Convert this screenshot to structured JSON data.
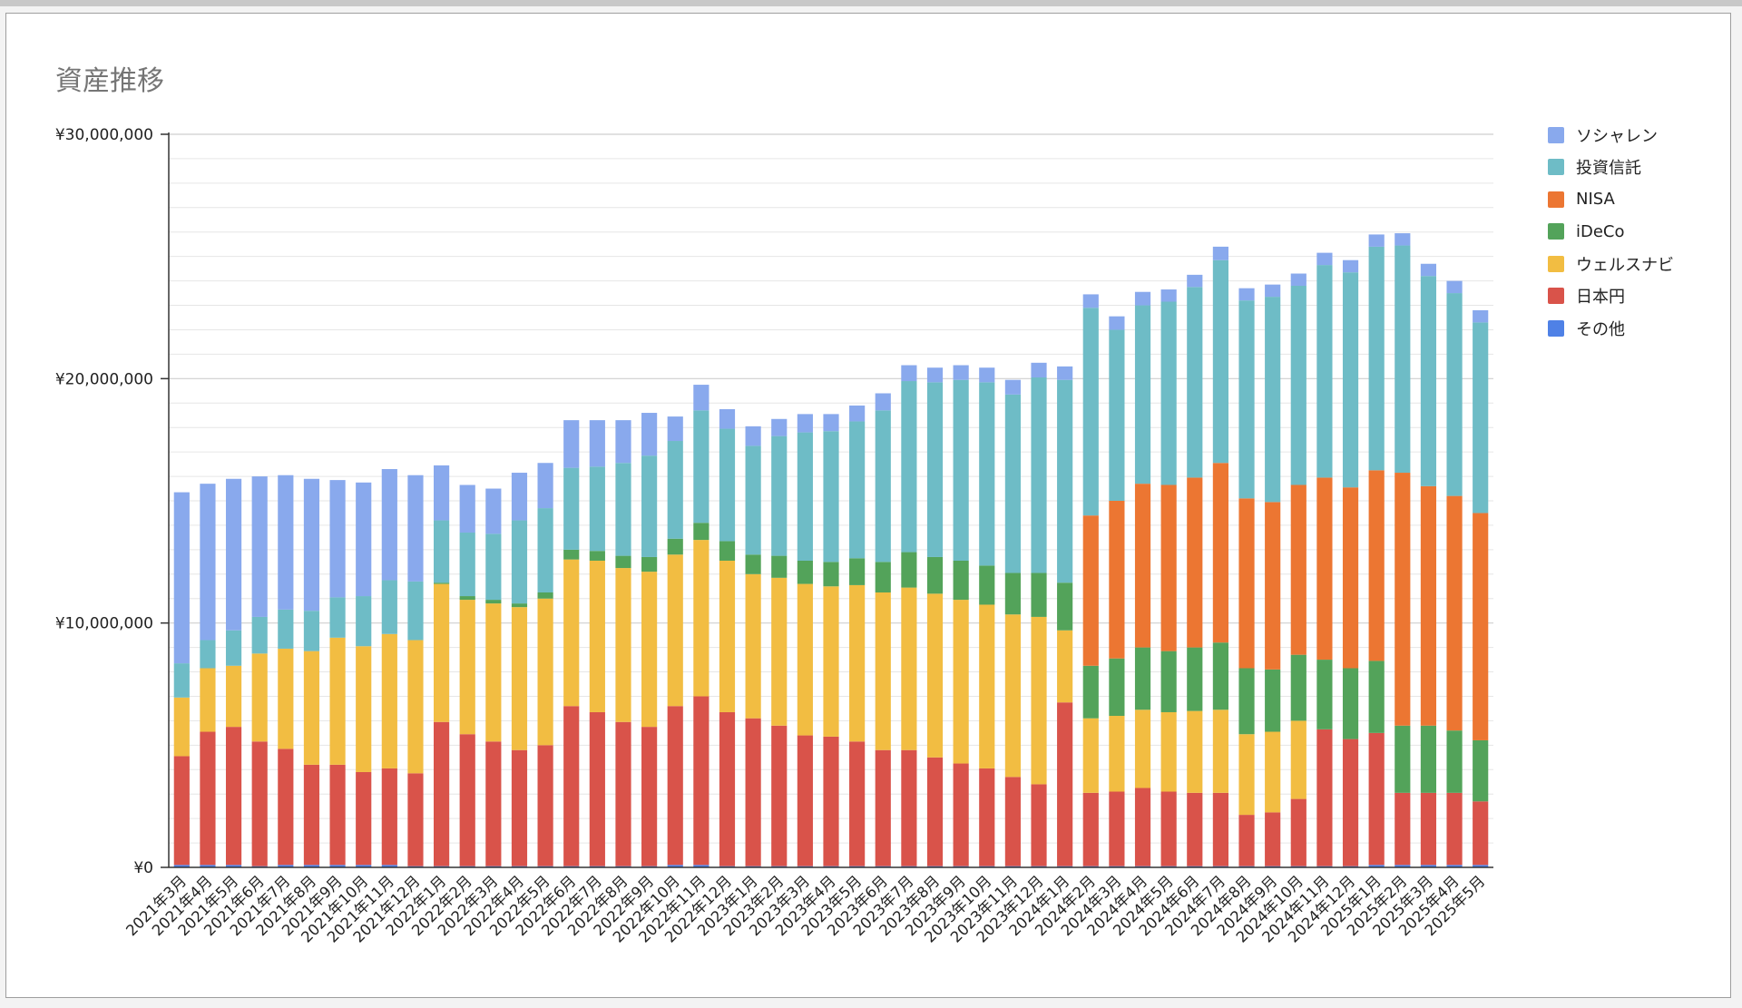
{
  "chart_data": {
    "type": "bar",
    "stacked": true,
    "title": "資産推移",
    "xlabel": "",
    "ylabel": "",
    "ylim": [
      0,
      30000000
    ],
    "y_ticks": [
      {
        "value": 0,
        "label": "¥0"
      },
      {
        "value": 10000000,
        "label": "¥10,000,000"
      },
      {
        "value": 20000000,
        "label": "¥20,000,000"
      },
      {
        "value": 30000000,
        "label": "¥30,000,000"
      }
    ],
    "gridlines": true,
    "legend_position": "right",
    "categories": [
      "2021年3月",
      "2021年4月",
      "2021年5月",
      "2021年6月",
      "2021年7月",
      "2021年8月",
      "2021年9月",
      "2021年10月",
      "2021年11月",
      "2021年12月",
      "2022年1月",
      "2022年2月",
      "2022年3月",
      "2022年4月",
      "2022年5月",
      "2022年6月",
      "2022年7月",
      "2022年8月",
      "2022年9月",
      "2022年10月",
      "2022年11月",
      "2022年12月",
      "2023年1月",
      "2023年2月",
      "2023年3月",
      "2023年4月",
      "2023年5月",
      "2023年6月",
      "2023年7月",
      "2023年8月",
      "2023年9月",
      "2023年10月",
      "2023年11月",
      "2023年12月",
      "2024年1月",
      "2024年2月",
      "2024年3月",
      "2024年4月",
      "2024年5月",
      "2024年6月",
      "2024年7月",
      "2024年8月",
      "2024年9月",
      "2024年10月",
      "2024年11月",
      "2024年12月",
      "2025年1月",
      "2025年2月",
      "2025年3月",
      "2025年4月",
      "2025年5月"
    ],
    "series": [
      {
        "name": "その他",
        "color": "#4f81e6",
        "values": [
          100000,
          100000,
          100000,
          50000,
          100000,
          100000,
          100000,
          100000,
          100000,
          50000,
          50000,
          50000,
          50000,
          50000,
          50000,
          50000,
          50000,
          50000,
          50000,
          100000,
          100000,
          50000,
          50000,
          50000,
          50000,
          50000,
          50000,
          50000,
          50000,
          50000,
          50000,
          50000,
          50000,
          50000,
          50000,
          50000,
          50000,
          50000,
          50000,
          50000,
          50000,
          50000,
          50000,
          50000,
          50000,
          50000,
          100000,
          100000,
          100000,
          100000,
          100000
        ]
      },
      {
        "name": "日本円",
        "color": "#d9534a",
        "values": [
          4450000,
          5450000,
          5650000,
          5100000,
          4750000,
          4100000,
          4100000,
          3800000,
          3950000,
          3800000,
          5900000,
          5400000,
          5100000,
          4750000,
          4950000,
          6550000,
          6300000,
          5900000,
          5700000,
          6500000,
          6900000,
          6300000,
          6050000,
          5750000,
          5350000,
          5300000,
          5100000,
          4750000,
          4750000,
          4450000,
          4200000,
          4000000,
          3650000,
          3350000,
          6700000,
          3000000,
          3050000,
          3200000,
          3050000,
          3000000,
          3000000,
          2100000,
          2200000,
          2750000,
          5600000,
          5200000,
          5400000,
          2950000,
          2950000,
          2950000,
          2600000
        ]
      },
      {
        "name": "ウェルスナビ",
        "color": "#f2bd42",
        "values": [
          2400000,
          2600000,
          2500000,
          3600000,
          4100000,
          4650000,
          5200000,
          5150000,
          5500000,
          5450000,
          5650000,
          5500000,
          5650000,
          5850000,
          6000000,
          6000000,
          6200000,
          6300000,
          6350000,
          6200000,
          6400000,
          6200000,
          5900000,
          6050000,
          6200000,
          6150000,
          6400000,
          6450000,
          6650000,
          6700000,
          6700000,
          6700000,
          6650000,
          6850000,
          2950000,
          3050000,
          3100000,
          3200000,
          3250000,
          3350000,
          3400000,
          3300000,
          3300000,
          3200000,
          0,
          0,
          0,
          0,
          0,
          0,
          0
        ]
      },
      {
        "name": "iDeCo",
        "color": "#53a35a",
        "values": [
          0,
          0,
          0,
          0,
          0,
          0,
          0,
          0,
          0,
          0,
          50000,
          150000,
          150000,
          150000,
          250000,
          400000,
          400000,
          500000,
          600000,
          650000,
          700000,
          800000,
          800000,
          900000,
          950000,
          1000000,
          1100000,
          1250000,
          1450000,
          1500000,
          1600000,
          1600000,
          1700000,
          1800000,
          1950000,
          2150000,
          2350000,
          2550000,
          2500000,
          2600000,
          2750000,
          2700000,
          2550000,
          2700000,
          2850000,
          2900000,
          2950000,
          2750000,
          2750000,
          2550000,
          2500000
        ]
      },
      {
        "name": "NISA",
        "color": "#ec7632",
        "values": [
          0,
          0,
          0,
          0,
          0,
          0,
          0,
          0,
          0,
          0,
          0,
          0,
          0,
          0,
          0,
          0,
          0,
          0,
          0,
          0,
          0,
          0,
          0,
          0,
          0,
          0,
          0,
          0,
          0,
          0,
          0,
          0,
          0,
          0,
          0,
          6150000,
          6450000,
          6700000,
          6800000,
          6950000,
          7350000,
          6950000,
          6850000,
          6950000,
          7450000,
          7400000,
          7800000,
          10350000,
          9800000,
          9600000,
          9300000
        ]
      },
      {
        "name": "投資信託",
        "color": "#6ebcc6",
        "values": [
          1400000,
          1150000,
          1450000,
          1500000,
          1600000,
          1650000,
          1650000,
          2050000,
          2200000,
          2400000,
          2550000,
          2600000,
          2700000,
          3400000,
          3450000,
          3350000,
          3450000,
          3800000,
          4150000,
          4000000,
          4600000,
          4600000,
          4450000,
          4900000,
          5250000,
          5350000,
          5600000,
          6200000,
          7000000,
          7150000,
          7400000,
          7500000,
          7300000,
          8000000,
          8300000,
          8500000,
          7000000,
          7300000,
          7500000,
          7800000,
          8300000,
          8100000,
          8400000,
          8150000,
          8700000,
          8800000,
          9150000,
          9300000,
          8600000,
          8300000,
          7800000
        ]
      },
      {
        "name": "ソシャレン",
        "color": "#89a9ed",
        "values": [
          7000000,
          6400000,
          6200000,
          5750000,
          5500000,
          5400000,
          4800000,
          4650000,
          4550000,
          4350000,
          2250000,
          1950000,
          1850000,
          1950000,
          1850000,
          1950000,
          1900000,
          1750000,
          1750000,
          1000000,
          1050000,
          800000,
          800000,
          700000,
          750000,
          700000,
          650000,
          700000,
          650000,
          600000,
          600000,
          600000,
          600000,
          600000,
          550000,
          550000,
          550000,
          550000,
          500000,
          500000,
          550000,
          500000,
          500000,
          500000,
          500000,
          500000,
          500000,
          500000,
          500000,
          500000,
          500000
        ]
      }
    ]
  },
  "legend": [
    {
      "label": "ソシャレン",
      "color": "#89a9ed"
    },
    {
      "label": "投資信託",
      "color": "#6ebcc6"
    },
    {
      "label": "NISA",
      "color": "#ec7632"
    },
    {
      "label": "iDeCo",
      "color": "#53a35a"
    },
    {
      "label": "ウェルスナビ",
      "color": "#f2bd42"
    },
    {
      "label": "日本円",
      "color": "#d9534a"
    },
    {
      "label": "その他",
      "color": "#4f81e6"
    }
  ]
}
